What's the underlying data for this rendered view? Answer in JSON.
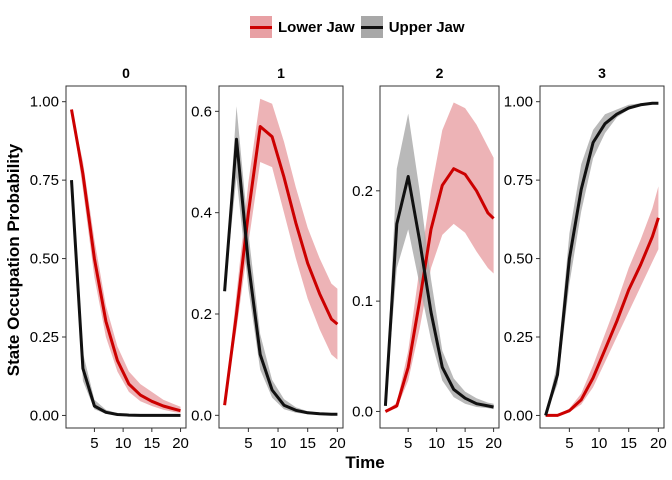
{
  "colors": {
    "lower_line": "#cc0000",
    "lower_band": "#e8a0a4",
    "upper_line": "#111111",
    "upper_band": "#a8a8a8"
  },
  "legend": {
    "items": [
      {
        "label": "Lower Jaw",
        "color": "#cc0000",
        "band": "#e8a0a4"
      },
      {
        "label": "Upper Jaw",
        "color": "#111111",
        "band": "#a8a8a8"
      }
    ]
  },
  "chart_data": {
    "type": "line",
    "xlabel": "Time",
    "ylabel": "State Occupation Probability",
    "legend_position": "top",
    "grid": false,
    "x": [
      1,
      3,
      5,
      7,
      9,
      11,
      13,
      15,
      17,
      19,
      20
    ],
    "x_ticks": [
      5,
      10,
      15,
      20
    ],
    "facets": [
      {
        "title": "0",
        "ylim": [
          -0.04,
          1.05
        ],
        "y_ticks": [
          0.0,
          0.25,
          0.5,
          0.75,
          1.0
        ],
        "y_tick_labels": [
          "0.00",
          "0.25",
          "0.50",
          "0.75",
          "1.00"
        ],
        "series": [
          {
            "name": "Lower Jaw",
            "values": [
              0.975,
              0.77,
              0.5,
              0.3,
              0.175,
              0.1,
              0.065,
              0.045,
              0.03,
              0.02,
              0.015
            ],
            "lower": [
              0.975,
              0.72,
              0.44,
              0.25,
              0.14,
              0.075,
              0.045,
              0.03,
              0.018,
              0.01,
              0.008
            ],
            "upper": [
              0.975,
              0.81,
              0.56,
              0.35,
              0.22,
              0.14,
              0.1,
              0.075,
              0.05,
              0.035,
              0.028
            ]
          },
          {
            "name": "Upper Jaw",
            "values": [
              0.75,
              0.15,
              0.03,
              0.01,
              0.003,
              0.001,
              0.0,
              0.0,
              0.0,
              0.0,
              0.0
            ],
            "lower": [
              0.75,
              0.11,
              0.02,
              0.005,
              0.001,
              0.0,
              0.0,
              0.0,
              0.0,
              0.0,
              0.0
            ],
            "upper": [
              0.75,
              0.2,
              0.05,
              0.018,
              0.007,
              0.003,
              0.001,
              0.0,
              0.0,
              0.0,
              0.0
            ]
          }
        ]
      },
      {
        "title": "1",
        "ylim": [
          -0.025,
          0.65
        ],
        "y_ticks": [
          0.0,
          0.2,
          0.4,
          0.6
        ],
        "y_tick_labels": [
          "0.0",
          "0.2",
          "0.4",
          "0.6"
        ],
        "series": [
          {
            "name": "Lower Jaw",
            "values": [
              0.02,
              0.2,
              0.4,
              0.57,
              0.55,
              0.47,
              0.38,
              0.3,
              0.24,
              0.19,
              0.18
            ],
            "lower": [
              0.02,
              0.17,
              0.34,
              0.5,
              0.49,
              0.4,
              0.31,
              0.23,
              0.17,
              0.12,
              0.11
            ],
            "upper": [
              0.02,
              0.24,
              0.46,
              0.625,
              0.615,
              0.54,
              0.45,
              0.37,
              0.31,
              0.26,
              0.25
            ]
          },
          {
            "name": "Upper Jaw",
            "values": [
              0.245,
              0.545,
              0.3,
              0.12,
              0.05,
              0.02,
              0.01,
              0.005,
              0.003,
              0.002,
              0.002
            ],
            "lower": [
              0.245,
              0.47,
              0.25,
              0.09,
              0.035,
              0.012,
              0.005,
              0.002,
              0.001,
              0.0,
              0.0
            ],
            "upper": [
              0.245,
              0.61,
              0.36,
              0.16,
              0.07,
              0.032,
              0.016,
              0.008,
              0.005,
              0.004,
              0.004
            ]
          }
        ]
      },
      {
        "title": "2",
        "ylim": [
          -0.015,
          0.295
        ],
        "y_ticks": [
          0.0,
          0.1,
          0.2
        ],
        "y_tick_labels": [
          "0.0",
          "0.1",
          "0.2"
        ],
        "series": [
          {
            "name": "Lower Jaw",
            "values": [
              0.0,
              0.005,
              0.04,
              0.1,
              0.165,
              0.205,
              0.22,
              0.215,
              0.2,
              0.18,
              0.175
            ],
            "lower": [
              0.0,
              0.003,
              0.028,
              0.075,
              0.13,
              0.16,
              0.17,
              0.162,
              0.145,
              0.13,
              0.125
            ],
            "upper": [
              0.0,
              0.008,
              0.055,
              0.13,
              0.2,
              0.255,
              0.28,
              0.275,
              0.26,
              0.24,
              0.23
            ]
          },
          {
            "name": "Upper Jaw",
            "values": [
              0.005,
              0.17,
              0.213,
              0.155,
              0.09,
              0.04,
              0.02,
              0.012,
              0.007,
              0.005,
              0.004
            ],
            "lower": [
              0.005,
              0.13,
              0.165,
              0.115,
              0.065,
              0.028,
              0.013,
              0.007,
              0.004,
              0.003,
              0.002
            ],
            "upper": [
              0.005,
              0.22,
              0.27,
              0.2,
              0.12,
              0.055,
              0.03,
              0.018,
              0.012,
              0.008,
              0.007
            ]
          }
        ]
      },
      {
        "title": "3",
        "ylim": [
          -0.04,
          1.05
        ],
        "y_ticks": [
          0.0,
          0.25,
          0.5,
          0.75,
          1.0
        ],
        "y_tick_labels": [
          "0.00",
          "0.25",
          "0.50",
          "0.75",
          "1.00"
        ],
        "series": [
          {
            "name": "Lower Jaw",
            "values": [
              0.0,
              0.0,
              0.015,
              0.05,
              0.12,
              0.21,
              0.3,
              0.4,
              0.48,
              0.57,
              0.63
            ],
            "lower": [
              0.0,
              0.0,
              0.01,
              0.035,
              0.09,
              0.17,
              0.25,
              0.33,
              0.41,
              0.49,
              0.53
            ],
            "upper": [
              0.0,
              0.0,
              0.022,
              0.07,
              0.16,
              0.26,
              0.36,
              0.47,
              0.56,
              0.66,
              0.73
            ]
          },
          {
            "name": "Upper Jaw",
            "values": [
              0.0,
              0.13,
              0.5,
              0.72,
              0.87,
              0.93,
              0.96,
              0.98,
              0.99,
              0.995,
              0.995
            ],
            "lower": [
              0.0,
              0.1,
              0.42,
              0.65,
              0.82,
              0.9,
              0.95,
              0.975,
              0.988,
              0.993,
              0.993
            ],
            "upper": [
              0.0,
              0.17,
              0.58,
              0.8,
              0.91,
              0.96,
              0.975,
              0.99,
              0.995,
              0.998,
              0.998
            ]
          }
        ]
      }
    ]
  }
}
